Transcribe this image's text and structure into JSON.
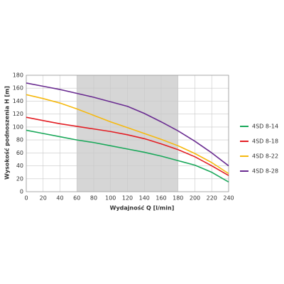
{
  "chart_data": {
    "type": "line",
    "x_label": "Wydajność Q [l/min]",
    "y_label": "Wysokość podnoszenia H [m]",
    "x": [
      0,
      20,
      40,
      60,
      80,
      100,
      120,
      140,
      160,
      180,
      200,
      220,
      240
    ],
    "series": [
      {
        "name": "4SD 8-14",
        "color": "#1aa85a",
        "values": [
          95,
          90,
          85,
          80,
          76,
          71,
          66,
          61,
          55,
          48,
          41,
          30,
          15
        ]
      },
      {
        "name": "4SD 8-18",
        "color": "#e31e24",
        "values": [
          115,
          110,
          105,
          101,
          97,
          93,
          88,
          82,
          74,
          65,
          54,
          40,
          25
        ]
      },
      {
        "name": "4SD 8-22",
        "color": "#f6b90f",
        "values": [
          150,
          144,
          137,
          128,
          118,
          108,
          99,
          90,
          81,
          71,
          59,
          45,
          28
        ]
      },
      {
        "name": "4SD 8-28",
        "color": "#6a2c91",
        "values": [
          168,
          163,
          158,
          152,
          146,
          139,
          132,
          121,
          108,
          94,
          78,
          60,
          40
        ]
      }
    ],
    "xlim": [
      0,
      240
    ],
    "xticks": [
      0,
      20,
      40,
      60,
      80,
      100,
      120,
      140,
      160,
      180,
      200,
      220,
      240
    ],
    "ylim": [
      0,
      180
    ],
    "yticks": [
      0,
      20,
      40,
      60,
      80,
      100,
      120,
      140,
      160,
      180
    ],
    "shaded_range": [
      60,
      180
    ],
    "shade_color": "#d6d6d6",
    "grid": true,
    "legend": "right"
  }
}
